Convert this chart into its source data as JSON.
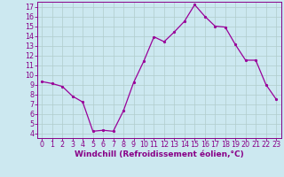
{
  "x": [
    0,
    1,
    2,
    3,
    4,
    5,
    6,
    7,
    8,
    9,
    10,
    11,
    12,
    13,
    14,
    15,
    16,
    17,
    18,
    19,
    20,
    21,
    22,
    23
  ],
  "y": [
    9.3,
    9.1,
    8.8,
    7.8,
    7.2,
    4.2,
    4.3,
    4.2,
    6.3,
    9.2,
    11.4,
    13.9,
    13.4,
    14.4,
    15.5,
    17.2,
    16.0,
    15.0,
    14.9,
    13.1,
    11.5,
    11.5,
    9.0,
    7.5
  ],
  "line_color": "#990099",
  "marker": ".",
  "bg_color": "#cce8f0",
  "grid_color": "#b0cccc",
  "xlabel": "Windchill (Refroidissement éolien,°C)",
  "xlim": [
    -0.5,
    23.5
  ],
  "ylim": [
    3.5,
    17.5
  ],
  "yticks": [
    4,
    5,
    6,
    7,
    8,
    9,
    10,
    11,
    12,
    13,
    14,
    15,
    16,
    17
  ],
  "xticks": [
    0,
    1,
    2,
    3,
    4,
    5,
    6,
    7,
    8,
    9,
    10,
    11,
    12,
    13,
    14,
    15,
    16,
    17,
    18,
    19,
    20,
    21,
    22,
    23
  ],
  "tick_color": "#880088",
  "label_color": "#880088",
  "label_fontsize": 6.5,
  "tick_fontsize": 5.8
}
